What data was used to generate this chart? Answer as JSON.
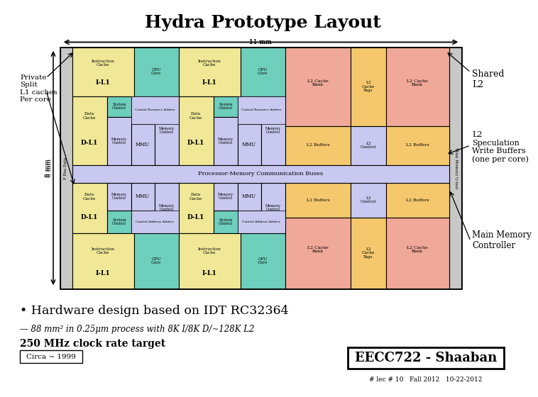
{
  "title": "Hydra Prototype Layout",
  "colors": {
    "yellow": "#F0E896",
    "green": "#6ECFBC",
    "purple_light": "#C8C8F0",
    "pink": "#F0A898",
    "orange": "#F5C86E",
    "white": "#FFFFFF",
    "gray_side": "#C8C8C8",
    "black": "#000000"
  },
  "dim_label_11mm": "11 mm",
  "dim_label_8mm": "8 mm",
  "bullet1": "• Hardware design based on IDT RC32364",
  "bullet2": "— 88 mm² in 0.25μm process with 8K I/8K D/~128K L2",
  "bullet3": "250 MHz clock rate target",
  "circa": "Circa ~ 1999",
  "course": "EECC722 - Shaaban",
  "footer": "# lec # 10   Fall 2012   10-22-2012",
  "label_shared_l2": "Shared\nL2",
  "label_l2_spec": "L2\nSpeculation\nWrite Buffers\n(one per core)",
  "label_main_mem": "Main Memory\nController",
  "label_private": "Private\nSplit\nL1 caches\nPer core"
}
